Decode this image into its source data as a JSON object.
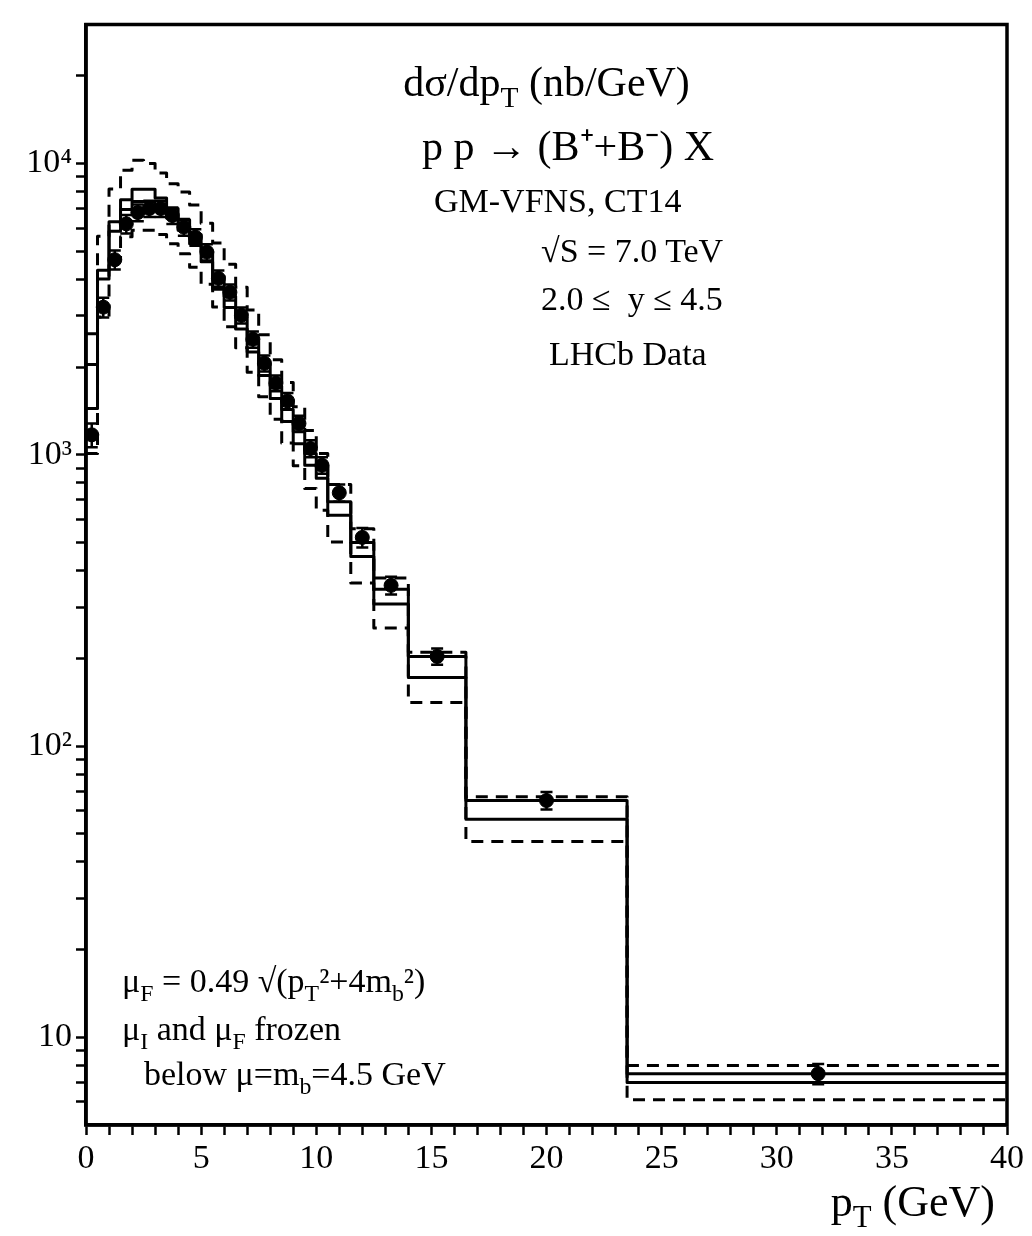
{
  "chart_data": {
    "type": "step",
    "title": "dσ/dp$_{T}$ (nb/GeV)",
    "xlabel": "p$_{T}$ (GeV)",
    "log": "y",
    "x": [
      0,
      0.5,
      1,
      1.5,
      2,
      2.5,
      3,
      3.5,
      4,
      4.5,
      5,
      5.5,
      6,
      6.5,
      7,
      7.5,
      8,
      8.5,
      9,
      9.5,
      10,
      10.5,
      11.5,
      12.5,
      14,
      16.5,
      23.5,
      40
    ],
    "series": [
      {
        "color": "#000000",
        "line_style": "solid",
        "values": [
          1440,
          4010,
          5850,
          6950,
          7400,
          7400,
          7000,
          6500,
          5900,
          5300,
          4600,
          3700,
          3200,
          2700,
          2250,
          1870,
          1560,
          1300,
          1090,
          920,
          830,
          620,
          447,
          307,
          172,
          56,
          7.0,
          7.0
        ]
      },
      {
        "color": "#000000",
        "line_style": "solid",
        "values": [
          2040,
          4300,
          6300,
          7500,
          8150,
          8150,
          7600,
          7000,
          6400,
          5700,
          5000,
          4100,
          3500,
          2950,
          2450,
          2050,
          1720,
          1430,
          1200,
          1010,
          910,
          690,
          500,
          345,
          203,
          65,
          7.5,
          7.5
        ]
      },
      {
        "color": "#000000",
        "line_style": "dashed",
        "values": [
          2600,
          5620,
          8170,
          9470,
          10260,
          10000,
          9270,
          8510,
          7980,
          7190,
          6230,
          5330,
          4510,
          3760,
          3140,
          2580,
          2120,
          1770,
          1460,
          1210,
          1010,
          790,
          557,
          377,
          210,
          67,
          8.0,
          8.0
        ]
      },
      {
        "color": "#000000",
        "line_style": "dashed",
        "values": [
          1010,
          2970,
          4700,
          5600,
          5900,
          5900,
          5700,
          5300,
          4900,
          4400,
          3850,
          3215,
          2750,
          2330,
          1920,
          1580,
          1324,
          1096,
          917,
          765,
          645,
          502,
          363,
          254,
          141,
          47,
          6.1,
          6.1
        ]
      },
      {
        "type": "scatter",
        "color": "#000000",
        "marker": "circle",
        "x": [
          0.25,
          0.75,
          1.25,
          1.75,
          2.25,
          2.75,
          3.25,
          3.75,
          4.25,
          4.75,
          5.25,
          5.75,
          6.25,
          6.75,
          7.25,
          7.75,
          8.25,
          8.75,
          9.25,
          9.75,
          10.25,
          11,
          12,
          13.25,
          15.25,
          20,
          31.8
        ],
        "values": [
          1170,
          3210,
          4670,
          6200,
          6780,
          7000,
          7000,
          6620,
          6040,
          5580,
          4960,
          4030,
          3610,
          3010,
          2490,
          2060,
          1760,
          1530,
          1280,
          1050,
          920,
          740,
          520,
          356,
          203,
          65,
          7.5
        ],
        "errors": [
          110,
          250,
          350,
          450,
          450,
          450,
          450,
          430,
          400,
          360,
          320,
          260,
          230,
          190,
          160,
          130,
          110,
          100,
          80,
          70,
          60,
          50,
          40,
          25,
          13,
          4.5,
          0.6
        ]
      }
    ],
    "xlim": [
      0,
      40
    ],
    "xticks": [
      0,
      {
        "value": 1,
        "label": null
      },
      {
        "value": 2,
        "label": null
      },
      {
        "value": 3,
        "label": null
      },
      {
        "value": 4,
        "label": null
      },
      5,
      {
        "value": 6,
        "label": null
      },
      {
        "value": 7,
        "label": null
      },
      {
        "value": 8,
        "label": null
      },
      {
        "value": 9,
        "label": null
      },
      10,
      {
        "value": 11,
        "label": null
      },
      {
        "value": 12,
        "label": null
      },
      {
        "value": 13,
        "label": null
      },
      {
        "value": 14,
        "label": null
      },
      15,
      {
        "value": 16,
        "label": null
      },
      {
        "value": 17,
        "label": null
      },
      {
        "value": 18,
        "label": null
      },
      {
        "value": 19,
        "label": null
      },
      20,
      {
        "value": 21,
        "label": null
      },
      {
        "value": 22,
        "label": null
      },
      {
        "value": 23,
        "label": null
      },
      {
        "value": 24,
        "label": null
      },
      25,
      {
        "value": 26,
        "label": null
      },
      {
        "value": 27,
        "label": null
      },
      {
        "value": 28,
        "label": null
      },
      {
        "value": 29,
        "label": null
      },
      30,
      {
        "value": 31,
        "label": null
      },
      {
        "value": 32,
        "label": null
      },
      {
        "value": 33,
        "label": null
      },
      {
        "value": 34,
        "label": null
      },
      35,
      {
        "value": 36,
        "label": null
      },
      {
        "value": 37,
        "label": null
      },
      {
        "value": 38,
        "label": null
      },
      {
        "value": 39,
        "label": null
      },
      40
    ],
    "ylim": [
      5,
      30000
    ],
    "yticks": [
      {
        "value": 6,
        "label": null
      },
      {
        "value": 7,
        "label": null
      },
      {
        "value": 8,
        "label": null
      },
      {
        "value": 9,
        "label": null
      },
      10,
      {
        "value": 20,
        "label": null
      },
      {
        "value": 30,
        "label": null
      },
      {
        "value": 40,
        "label": null
      },
      {
        "value": 50,
        "label": null
      },
      {
        "value": 60,
        "label": null
      },
      {
        "value": 70,
        "label": null
      },
      {
        "value": 80,
        "label": null
      },
      {
        "value": 90,
        "label": null
      },
      {
        "value": 100,
        "label": "10²"
      },
      {
        "value": 200,
        "label": null
      },
      {
        "value": 300,
        "label": null
      },
      {
        "value": 400,
        "label": null
      },
      {
        "value": 500,
        "label": null
      },
      {
        "value": 600,
        "label": null
      },
      {
        "value": 700,
        "label": null
      },
      {
        "value": 800,
        "label": null
      },
      {
        "value": 900,
        "label": null
      },
      {
        "value": 1000,
        "label": "10³"
      },
      {
        "value": 2000,
        "label": null
      },
      {
        "value": 3000,
        "label": null
      },
      {
        "value": 4000,
        "label": null
      },
      {
        "value": 5000,
        "label": null
      },
      {
        "value": 6000,
        "label": null
      },
      {
        "value": 7000,
        "label": null
      },
      {
        "value": 8000,
        "label": null
      },
      {
        "value": 9000,
        "label": null
      },
      {
        "value": 10000,
        "label": "10⁴"
      },
      {
        "value": 20000,
        "label": null
      }
    ],
    "annotations": [
      "p p → (B⁺+B⁻) X",
      "GM-VFNS, CT14",
      "√S = 7.0 TeV",
      "2.0 ≤  y ≤ 4.5",
      "LHCb Data",
      "μ$_{F}$ = 0.49 √(p$_{T}$²+4m$_{b}$²)",
      "μ$_{I}$ and μ$_{F}$ frozen",
      "below μ=m$_{b}$=4.5 GeV"
    ]
  }
}
